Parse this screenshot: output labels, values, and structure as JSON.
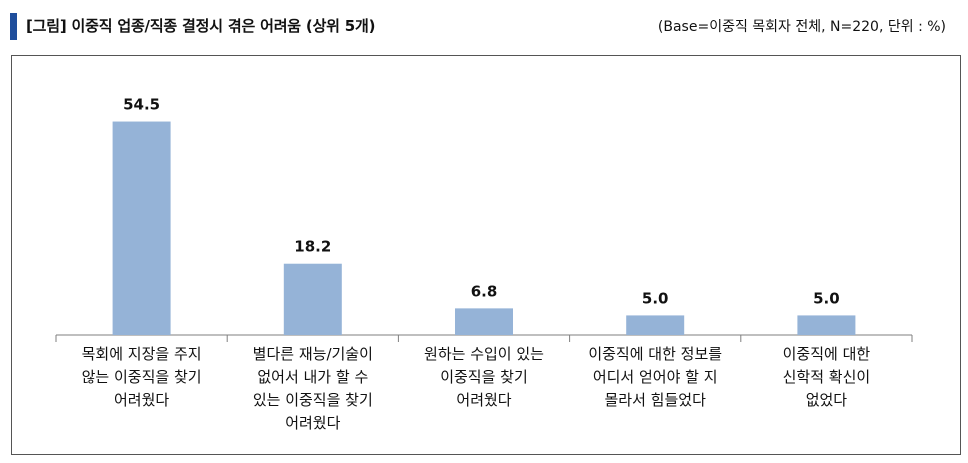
{
  "header": {
    "title": "[그림] 이중직 업종/직종 결정시 겪은 어려움 (상위 5개)",
    "base_note": "(Base=이중직 목회자 전체, N=220, 단위 : %)"
  },
  "colors": {
    "accent": "#1f4e9c",
    "bar": "#95b3d7",
    "axis": "#7f7f7f"
  },
  "chart_data": {
    "type": "bar",
    "categories": [
      [
        "목회에 지장을 주지",
        "않는 이중직을 찾기",
        "어려웠다"
      ],
      [
        "별다른 재능/기술이",
        "없어서 내가 할 수",
        "있는 이중직을 찾기",
        "어려웠다"
      ],
      [
        "원하는 수입이 있는",
        "이중직을 찾기",
        "어려웠다"
      ],
      [
        "이중직에 대한 정보를",
        "어디서 얻어야 할 지",
        "몰라서 힘들었다"
      ],
      [
        "이중직에 대한",
        "신학적 확신이",
        "없었다"
      ]
    ],
    "values": [
      54.5,
      18.2,
      6.8,
      5.0,
      5.0
    ],
    "value_labels": [
      "54.5",
      "18.2",
      "6.8",
      "5.0",
      "5.0"
    ],
    "ylim": [
      0,
      60
    ],
    "grid": false,
    "legend": "none"
  }
}
